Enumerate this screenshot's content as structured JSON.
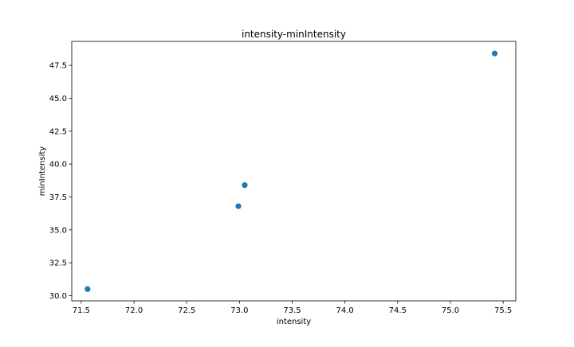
{
  "chart_data": {
    "type": "scatter",
    "title": "intensity-minIntensity",
    "xlabel": "intensity",
    "ylabel": "minIntensity",
    "xlim": [
      71.41,
      75.62
    ],
    "ylim": [
      29.61,
      49.32
    ],
    "x_ticks": [
      71.5,
      72.0,
      72.5,
      73.0,
      73.5,
      74.0,
      74.5,
      75.0,
      75.5
    ],
    "x_tick_labels": [
      "71.5",
      "72.0",
      "72.5",
      "73.0",
      "73.5",
      "74.0",
      "74.5",
      "75.0",
      "75.5"
    ],
    "y_ticks": [
      30.0,
      32.5,
      35.0,
      37.5,
      40.0,
      42.5,
      45.0,
      47.5
    ],
    "y_tick_labels": [
      "30.0",
      "32.5",
      "35.0",
      "37.5",
      "40.0",
      "42.5",
      "45.0",
      "47.5"
    ],
    "grid": false,
    "legend": "none",
    "marker_color": "#1f77b4",
    "points": [
      {
        "x": 71.56,
        "y": 30.5
      },
      {
        "x": 72.99,
        "y": 36.8
      },
      {
        "x": 73.05,
        "y": 38.4
      },
      {
        "x": 75.42,
        "y": 48.4
      }
    ]
  }
}
